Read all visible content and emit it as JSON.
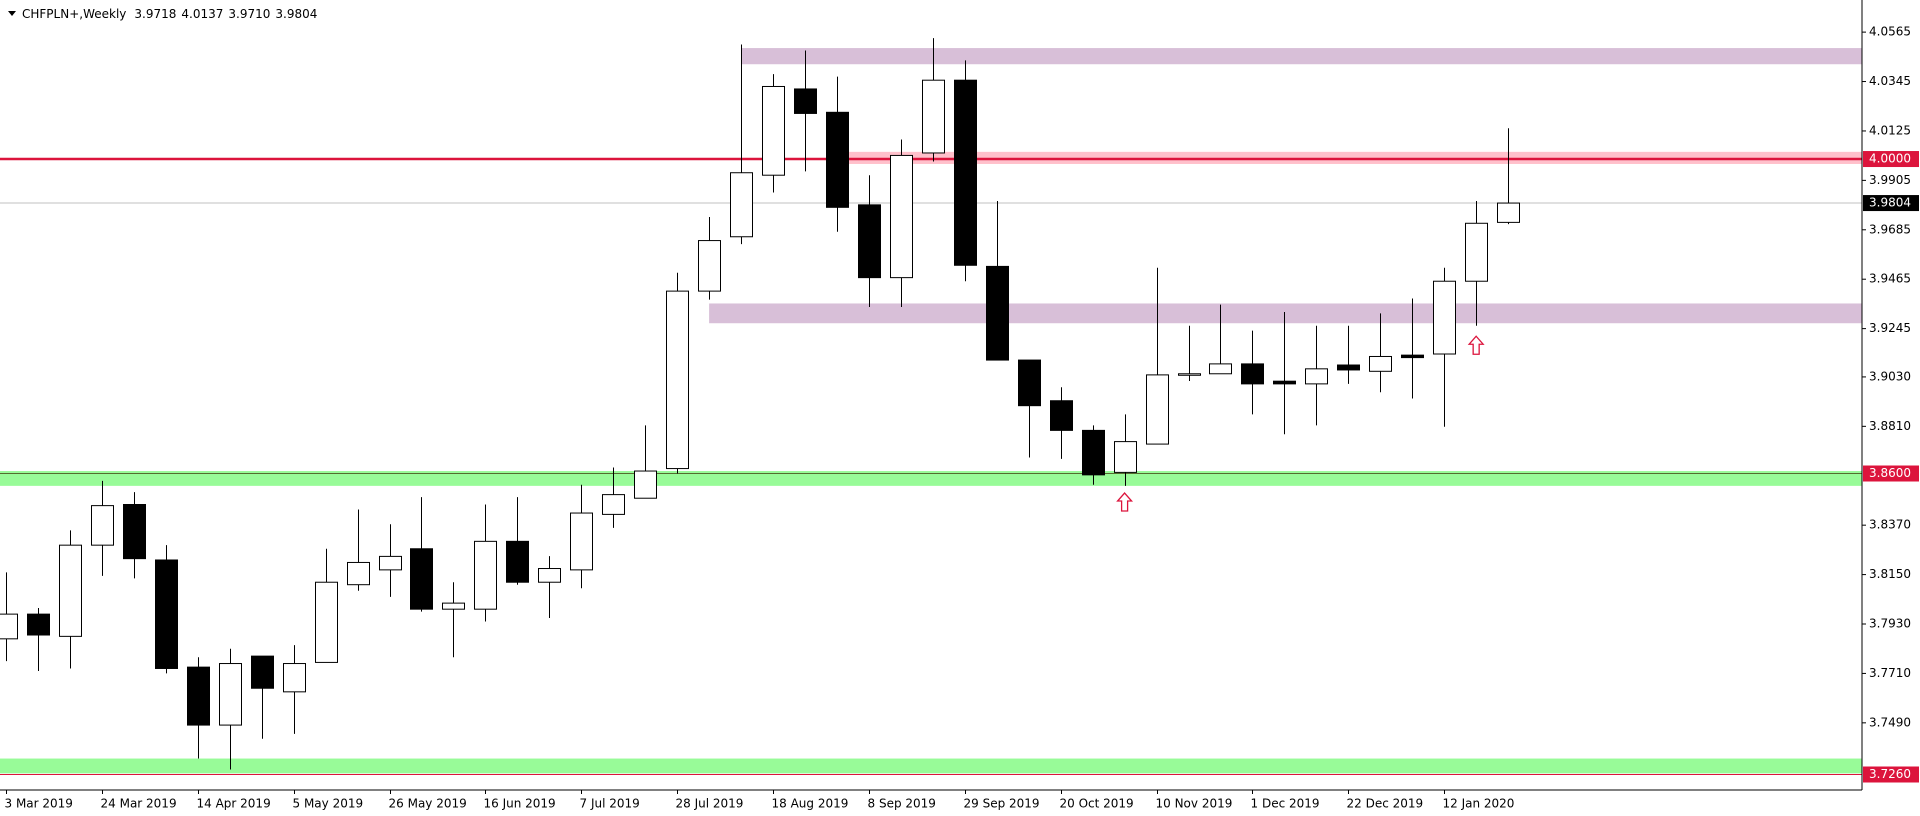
{
  "chart_data": {
    "type": "candlestick",
    "symbol": "CHFPLN+,Weekly",
    "last_bar_labels": [
      "3.9718",
      "4.0137",
      "3.9710",
      "3.9804"
    ],
    "x": [
      "3 Mar 2019",
      null,
      null,
      "24 Mar 2019",
      null,
      null,
      "14 Apr 2019",
      null,
      null,
      "5 May 2019",
      null,
      null,
      "26 May 2019",
      null,
      null,
      "16 Jun 2019",
      null,
      null,
      "7 Jul 2019",
      null,
      null,
      "28 Jul 2019",
      null,
      null,
      "18 Aug 2019",
      null,
      null,
      "8 Sep 2019",
      null,
      null,
      "29 Sep 2019",
      null,
      null,
      "20 Oct 2019",
      null,
      null,
      "10 Nov 2019",
      null,
      null,
      "1 Dec 2019",
      null,
      null,
      "22 Dec 2019",
      null,
      null,
      "12 Jan 2020",
      null,
      null
    ],
    "open": [
      3.7864,
      3.7974,
      3.7875,
      3.8281,
      3.8462,
      3.8215,
      3.7738,
      3.748,
      3.7787,
      3.7628,
      3.7759,
      3.8105,
      3.8171,
      3.8265,
      3.7996,
      3.7996,
      3.8298,
      3.8116,
      3.8171,
      3.8418,
      3.849,
      3.8622,
      3.9412,
      3.9654,
      3.9928,
      4.0312,
      4.0208,
      3.9796,
      3.9472,
      4.0027,
      4.0351,
      3.9522,
      3.9105,
      3.8924,
      3.8792,
      3.8605,
      3.8731,
      3.9039,
      3.9044,
      3.9088,
      3.9011,
      3.8999,
      3.9083,
      3.9055,
      3.9127,
      3.9132,
      3.9456,
      3.9718
    ],
    "high": [
      3.816,
      3.8001,
      3.8347,
      3.8567,
      3.8517,
      3.8281,
      3.7782,
      3.782,
      3.7787,
      3.7836,
      3.8265,
      3.844,
      3.8374,
      3.8495,
      3.8116,
      3.8462,
      3.8495,
      3.8232,
      3.855,
      3.8627,
      3.8814,
      3.9494,
      3.9742,
      4.051,
      4.0378,
      4.0483,
      4.0367,
      3.9928,
      4.0087,
      4.0538,
      4.0439,
      3.9813,
      3.9105,
      3.8984,
      3.8814,
      3.8863,
      3.9516,
      3.9258,
      3.9352,
      3.9236,
      3.9319,
      3.9258,
      3.9258,
      3.9313,
      3.9379,
      3.9516,
      3.9813,
      4.0137
    ],
    "low": [
      3.7765,
      3.7721,
      3.7732,
      3.8144,
      3.8133,
      3.771,
      3.7331,
      3.7282,
      3.7419,
      3.7441,
      3.7759,
      3.8078,
      3.8051,
      3.7985,
      3.7782,
      3.7941,
      3.8105,
      3.7957,
      3.8089,
      3.8358,
      3.849,
      3.86,
      3.9374,
      3.9621,
      3.9851,
      3.9945,
      3.9676,
      3.9341,
      3.9341,
      3.9989,
      3.9456,
      3.9105,
      3.8671,
      3.8665,
      3.855,
      3.8545,
      3.8731,
      3.9012,
      3.9044,
      3.8863,
      3.8775,
      3.8814,
      3.8999,
      3.8962,
      3.8934,
      3.8808,
      3.9258,
      3.971
    ],
    "close": [
      3.7974,
      3.7881,
      3.8281,
      3.8457,
      3.8221,
      3.7732,
      3.748,
      3.7754,
      3.7644,
      3.7754,
      3.8116,
      3.8204,
      3.8231,
      3.7996,
      3.8023,
      3.8298,
      3.8116,
      3.8177,
      3.8424,
      3.8506,
      3.8611,
      3.9412,
      3.9637,
      3.9939,
      4.0323,
      4.0203,
      3.9785,
      3.9472,
      4.0016,
      4.0351,
      3.9527,
      3.9105,
      3.8902,
      3.8792,
      3.8594,
      3.8742,
      3.9039,
      3.9044,
      3.9088,
      3.8999,
      3.8999,
      3.9066,
      3.9061,
      3.9121,
      3.9116,
      3.9456,
      3.9714,
      3.9804
    ],
    "up_color": "#ffffff",
    "down_color": "#000000",
    "ylim": [
      3.7191,
      4.0708
    ],
    "yticks": [
      4.0565,
      4.0345,
      4.0125,
      {
        "value": 3.9905,
        "label": "3.9905"
      },
      3.9685,
      3.9465,
      3.9245,
      {
        "value": 3.903,
        "label": "3.9030"
      },
      {
        "value": 3.881,
        "label": "3.8810"
      },
      {
        "value": 3.837,
        "label": "3.8370"
      },
      {
        "value": 3.815,
        "label": "3.8150"
      },
      {
        "value": 3.793,
        "label": "3.7930"
      },
      {
        "value": 3.771,
        "label": "3.7710"
      },
      {
        "value": 3.749,
        "label": "3.7490"
      }
    ],
    "zones": [
      {
        "from": 4.0422,
        "to": 4.0494,
        "start": 23,
        "color": "#d8bfd8"
      },
      {
        "from": 3.9978,
        "to": 4.0032,
        "start": 26,
        "color": "#ffc0cb"
      },
      {
        "from": 3.9269,
        "to": 3.9357,
        "start": 22,
        "color": "#d8bfd8"
      },
      {
        "from": 3.8545,
        "to": 3.8611,
        "color": "#98fb98"
      },
      {
        "from": 3.7265,
        "to": 3.7331,
        "color": "#98fb98"
      }
    ],
    "levels": [
      {
        "value": 4.0,
        "label": "4.0000",
        "color": "#dc143c",
        "width": 2.5,
        "box": "#dc143c"
      },
      {
        "value": 3.9804,
        "label": "3.9804",
        "color": "#c0c0c0",
        "width": 1,
        "box": "#000000"
      },
      {
        "value": 3.86,
        "label": "3.8600",
        "color": "#556b2f",
        "width": 1,
        "box": "#dc143c"
      },
      {
        "value": 3.726,
        "label": "3.7260",
        "color": "#dc143c",
        "width": 1,
        "box": "#dc143c"
      }
    ],
    "arrows": [
      {
        "at": 35,
        "price": 3.8473,
        "color": "#dc143c"
      },
      {
        "at": 46,
        "price": 3.9171,
        "color": "#dc143c"
      }
    ]
  }
}
